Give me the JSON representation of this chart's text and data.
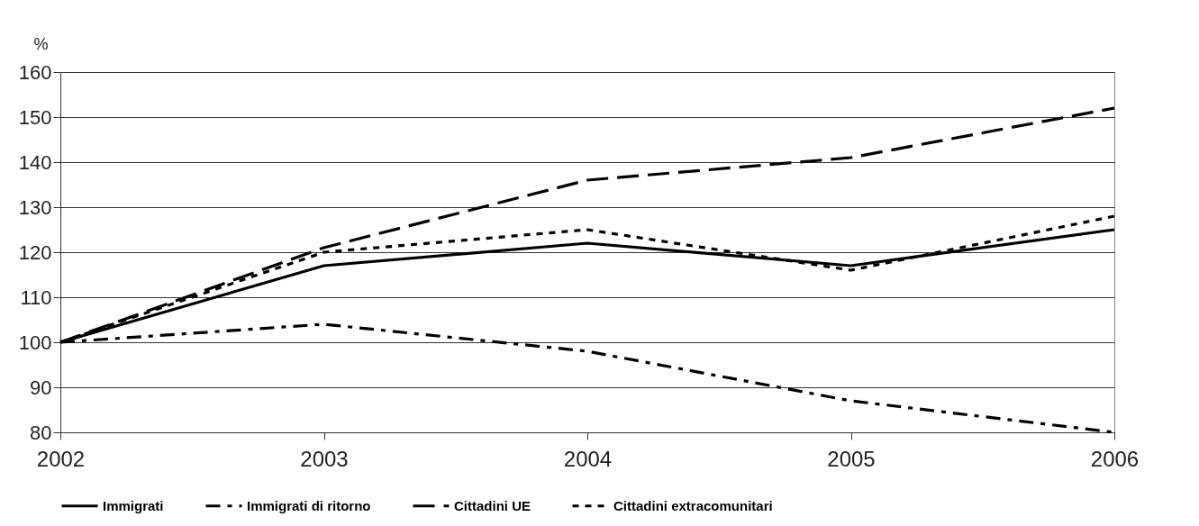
{
  "chart_data": {
    "type": "line",
    "ylabel": "%",
    "categories": [
      "2002",
      "2003",
      "2004",
      "2005",
      "2006"
    ],
    "series": [
      {
        "name": "Immigrati",
        "color": "#000000",
        "line_style": "solid",
        "values": [
          100,
          117,
          122,
          117,
          125
        ]
      },
      {
        "name": "Immigrati di ritorno",
        "color": "#000000",
        "line_style": "dashdot",
        "values": [
          100,
          104,
          98,
          87,
          80
        ]
      },
      {
        "name": "Cittadini UE",
        "color": "#000000",
        "line_style": "dashed",
        "values": [
          100,
          121,
          136,
          141,
          152
        ]
      },
      {
        "name": "Cittadini extracomunitari",
        "color": "#000000",
        "line_style": "dotted",
        "values": [
          100,
          120,
          125,
          116,
          128
        ]
      }
    ],
    "ylim": [
      80,
      160
    ],
    "yticks": [
      80,
      90,
      100,
      110,
      120,
      130,
      140,
      150,
      160
    ],
    "grid": "y",
    "legend": "bottom",
    "marker": "none"
  }
}
